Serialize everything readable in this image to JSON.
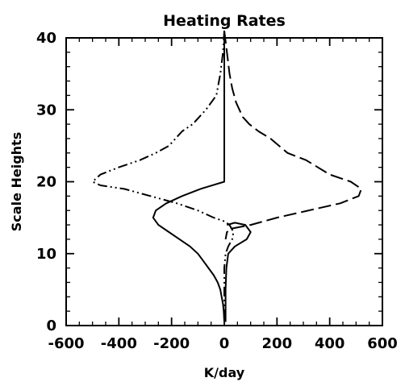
{
  "chart_data": {
    "type": "line",
    "title": "Heating Rates",
    "xlabel": "K/day",
    "ylabel": "Scale Heights",
    "xlim": [
      -600,
      600
    ],
    "ylim": [
      0,
      40
    ],
    "xticks": [
      "-600",
      "-400",
      "-200",
      "0",
      "200",
      "400",
      "600"
    ],
    "yticks": [
      "0",
      "10",
      "20",
      "30",
      "40"
    ],
    "grid": false,
    "legend": "none",
    "series": [
      {
        "style": "solid",
        "points": [
          [
            0,
            0.5
          ],
          [
            -2,
            2
          ],
          [
            -5,
            3
          ],
          [
            -10,
            4
          ],
          [
            -15,
            5
          ],
          [
            -25,
            6
          ],
          [
            -40,
            7
          ],
          [
            -60,
            8
          ],
          [
            -80,
            9
          ],
          [
            -100,
            10
          ],
          [
            -130,
            11
          ],
          [
            -170,
            12
          ],
          [
            -210,
            13
          ],
          [
            -250,
            14
          ],
          [
            -270,
            15
          ],
          [
            -260,
            16
          ],
          [
            -220,
            17
          ],
          [
            -160,
            18
          ],
          [
            -90,
            19
          ],
          [
            0,
            20
          ],
          [
            0,
            41
          ]
        ]
      },
      {
        "style": "dash-dot-dot",
        "points": [
          [
            0,
            41
          ],
          [
            -5,
            38
          ],
          [
            -15,
            35
          ],
          [
            -30,
            32
          ],
          [
            -70,
            30
          ],
          [
            -120,
            28
          ],
          [
            -160,
            27
          ],
          [
            -210,
            25
          ],
          [
            -260,
            24
          ],
          [
            -320,
            23
          ],
          [
            -400,
            22
          ],
          [
            -470,
            21
          ],
          [
            -500,
            20
          ],
          [
            -470,
            19.5
          ],
          [
            -380,
            19
          ],
          [
            -280,
            18
          ],
          [
            -180,
            17
          ],
          [
            -100,
            16
          ],
          [
            -40,
            15
          ],
          [
            0,
            14.5
          ],
          [
            20,
            14
          ],
          [
            35,
            13
          ],
          [
            30,
            12
          ],
          [
            15,
            11
          ],
          [
            5,
            10
          ],
          [
            0,
            8
          ],
          [
            0,
            6
          ],
          [
            0,
            3
          ],
          [
            0,
            0.5
          ]
        ]
      },
      {
        "style": "long-dash",
        "points": [
          [
            0,
            41
          ],
          [
            10,
            38
          ],
          [
            20,
            35
          ],
          [
            30,
            33
          ],
          [
            45,
            31
          ],
          [
            70,
            29
          ],
          [
            95,
            28
          ],
          [
            130,
            27
          ],
          [
            175,
            26
          ],
          [
            240,
            24
          ],
          [
            310,
            23
          ],
          [
            400,
            21
          ],
          [
            480,
            20
          ],
          [
            520,
            19
          ],
          [
            510,
            18
          ],
          [
            440,
            17
          ],
          [
            320,
            16
          ],
          [
            200,
            15
          ],
          [
            100,
            14
          ],
          [
            30,
            13.5
          ],
          [
            10,
            13
          ],
          [
            5,
            12
          ]
        ]
      },
      {
        "style": "solid",
        "points": [
          [
            5,
            0.5
          ],
          [
            5,
            5
          ],
          [
            8,
            8
          ],
          [
            15,
            10
          ],
          [
            40,
            11
          ],
          [
            85,
            12
          ],
          [
            100,
            13
          ],
          [
            80,
            14
          ],
          [
            40,
            14.3
          ],
          [
            10,
            14
          ]
        ]
      }
    ]
  }
}
